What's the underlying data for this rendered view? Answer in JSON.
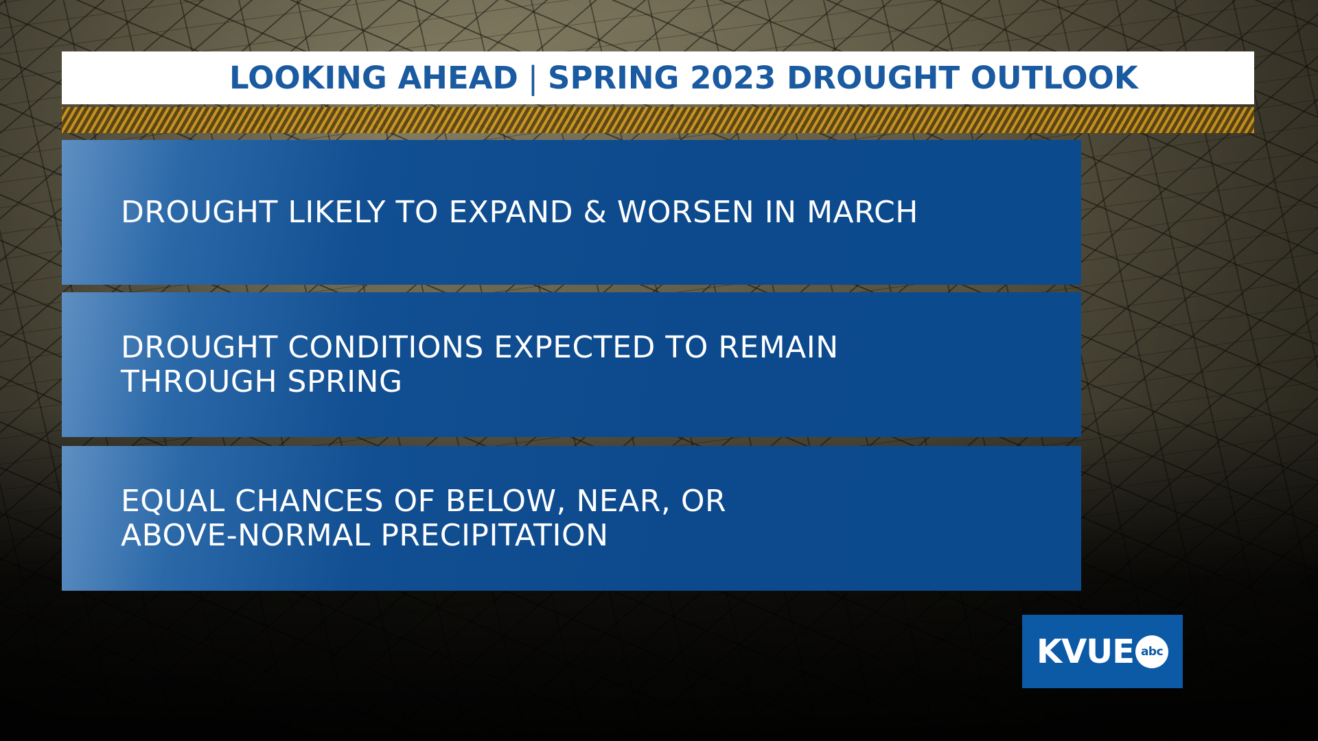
{
  "header": {
    "left": "LOOKING AHEAD",
    "separator": "|",
    "right": "SPRING 2023 DROUGHT OUTLOOK"
  },
  "panels": [
    {
      "text": "DROUGHT LIKELY TO EXPAND & WORSEN IN MARCH"
    },
    {
      "text": "DROUGHT CONDITIONS EXPECTED TO REMAIN\nTHROUGH SPRING"
    },
    {
      "text": "EQUAL CHANCES OF BELOW, NEAR, OR\nABOVE-NORMAL PRECIPITATION"
    }
  ],
  "logo": {
    "letters": "KVUE",
    "badge": "abc"
  },
  "colors": {
    "title_text": "#1a5aa0",
    "panel_blue": "#0c4a8e",
    "logo_blue": "#0c59a6",
    "hazard_yellow": "#d49a1c"
  },
  "background": {
    "description_icon": "cracked-earth-texture"
  }
}
